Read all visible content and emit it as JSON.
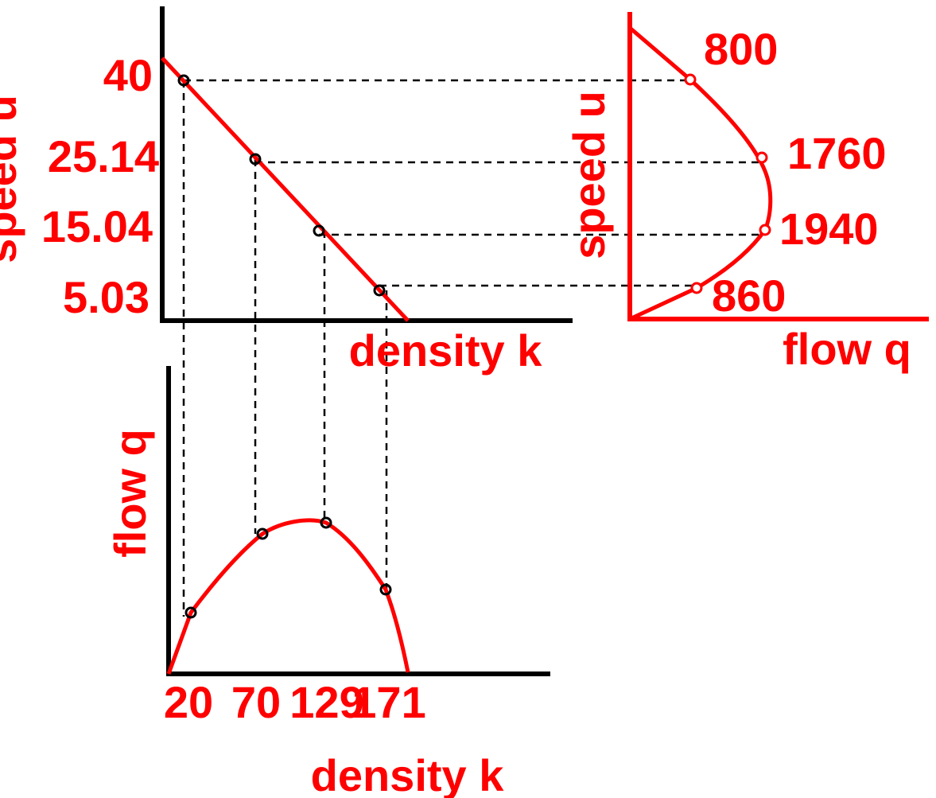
{
  "speed_density": {
    "y_label": "speed u",
    "x_label": "density k",
    "speed_labels": [
      "40",
      "25.14",
      "15.04",
      "5.03"
    ]
  },
  "speed_flow": {
    "y_label": "speed u",
    "x_label": "flow q",
    "flow_labels": [
      "800",
      "1760",
      "1940",
      "860"
    ]
  },
  "flow_density": {
    "y_label": "flow q",
    "x_label": "density k",
    "density_labels": [
      "20",
      "70",
      "129",
      "171"
    ]
  }
}
